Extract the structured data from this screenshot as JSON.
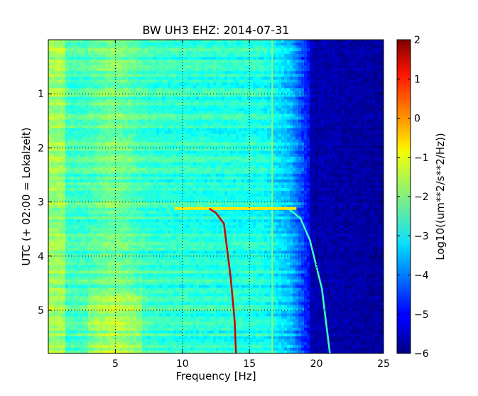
{
  "chart_data": {
    "type": "heatmap",
    "title": "BW UH3 EHZ: 2014-07-31",
    "xlabel": "Frequency [Hz]",
    "ylabel": "UTC (+ 02:00 = Lokalzeit)",
    "xlim": [
      0,
      25
    ],
    "ylim": [
      5.8,
      0
    ],
    "xticks": [
      5,
      10,
      15,
      20,
      25
    ],
    "yticks": [
      1,
      2,
      3,
      4,
      5
    ],
    "grid": true,
    "grid_style": "dotted",
    "colorbar": {
      "label": "Log10((um**2/s**2/Hz))",
      "range": [
        -6,
        2
      ],
      "ticks": [
        2,
        1,
        0,
        -1,
        -2,
        -3,
        -4,
        -5,
        -6
      ],
      "colormap": "jet"
    },
    "features": [
      {
        "kind": "horizontal-line",
        "y": 3.12,
        "x_from": 9.4,
        "x_to": 18.5,
        "value": -0.8
      },
      {
        "kind": "curve",
        "value": 1.4,
        "points": [
          [
            12.0,
            3.12
          ],
          [
            12.5,
            3.2
          ],
          [
            13.1,
            3.4
          ],
          [
            13.3,
            3.8
          ],
          [
            13.6,
            4.4
          ],
          [
            13.9,
            5.2
          ],
          [
            14.0,
            5.8
          ]
        ]
      },
      {
        "kind": "curve",
        "value": -2.5,
        "points": [
          [
            18.0,
            3.14
          ],
          [
            18.8,
            3.3
          ],
          [
            19.5,
            3.7
          ],
          [
            19.9,
            4.1
          ],
          [
            20.4,
            4.6
          ],
          [
            20.7,
            5.2
          ],
          [
            21.0,
            5.8
          ]
        ]
      },
      {
        "kind": "vertical-line",
        "x": 16.7,
        "value": -1.6
      }
    ]
  }
}
